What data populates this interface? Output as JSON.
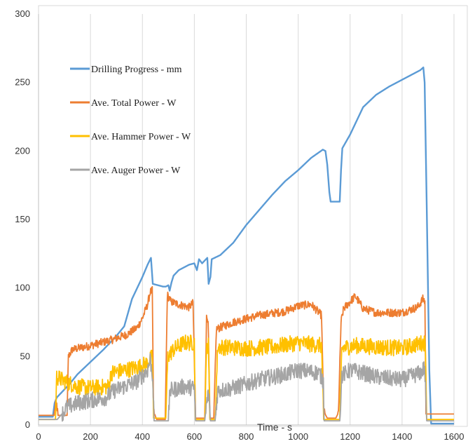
{
  "chart_data": {
    "type": "line",
    "title": "",
    "xlabel": "Time - s",
    "ylabel": "",
    "xlim": [
      0,
      1600
    ],
    "ylim": [
      0,
      300
    ],
    "x_ticks": [
      "0",
      "200",
      "400",
      "600",
      "800",
      "1000",
      "1200",
      "1400",
      "1600"
    ],
    "y_ticks": [
      "0",
      "50",
      "100",
      "150",
      "200",
      "250",
      "300"
    ],
    "grid": "vertical",
    "legend": "top-left inside plot",
    "series": [
      {
        "name": "Drilling Progress - mm",
        "color": "#5B9BD5",
        "noise": 0,
        "points": [
          [
            0,
            6
          ],
          [
            55,
            6
          ],
          [
            62,
            16
          ],
          [
            70,
            20
          ],
          [
            80,
            22
          ],
          [
            100,
            26
          ],
          [
            120,
            30
          ],
          [
            150,
            37
          ],
          [
            200,
            46
          ],
          [
            250,
            55
          ],
          [
            300,
            65
          ],
          [
            330,
            72
          ],
          [
            360,
            92
          ],
          [
            380,
            100
          ],
          [
            400,
            108
          ],
          [
            420,
            117
          ],
          [
            433,
            122
          ],
          [
            440,
            103
          ],
          [
            460,
            102
          ],
          [
            480,
            101
          ],
          [
            490,
            101
          ],
          [
            500,
            102
          ],
          [
            505,
            98
          ],
          [
            512,
            104
          ],
          [
            520,
            109
          ],
          [
            540,
            113
          ],
          [
            560,
            115
          ],
          [
            580,
            117
          ],
          [
            600,
            118
          ],
          [
            610,
            113
          ],
          [
            618,
            121
          ],
          [
            630,
            118
          ],
          [
            650,
            122
          ],
          [
            655,
            103
          ],
          [
            662,
            108
          ],
          [
            667,
            121
          ],
          [
            700,
            124
          ],
          [
            750,
            133
          ],
          [
            800,
            146
          ],
          [
            850,
            157
          ],
          [
            900,
            168
          ],
          [
            950,
            178
          ],
          [
            1000,
            186
          ],
          [
            1050,
            195
          ],
          [
            1080,
            199
          ],
          [
            1095,
            201
          ],
          [
            1105,
            200
          ],
          [
            1112,
            190
          ],
          [
            1120,
            170
          ],
          [
            1125,
            163
          ],
          [
            1160,
            163
          ],
          [
            1165,
            186
          ],
          [
            1170,
            202
          ],
          [
            1200,
            212
          ],
          [
            1250,
            232
          ],
          [
            1300,
            241
          ],
          [
            1350,
            247
          ],
          [
            1400,
            252
          ],
          [
            1450,
            257
          ],
          [
            1470,
            259
          ],
          [
            1482,
            261
          ],
          [
            1487,
            250
          ],
          [
            1495,
            160
          ],
          [
            1505,
            40
          ],
          [
            1512,
            1
          ],
          [
            1600,
            1
          ]
        ]
      },
      {
        "name": "Ave. Total Power - W",
        "color": "#ED7D31",
        "noise": 3,
        "points": [
          [
            0,
            7
          ],
          [
            60,
            7
          ],
          [
            65,
            15
          ],
          [
            70,
            15
          ],
          [
            75,
            7
          ],
          [
            110,
            7
          ],
          [
            115,
            50
          ],
          [
            130,
            55
          ],
          [
            200,
            58
          ],
          [
            280,
            62
          ],
          [
            340,
            66
          ],
          [
            380,
            71
          ],
          [
            400,
            78
          ],
          [
            420,
            88
          ],
          [
            430,
            97
          ],
          [
            438,
            98
          ],
          [
            443,
            10
          ],
          [
            455,
            4
          ],
          [
            488,
            4
          ],
          [
            496,
            95
          ],
          [
            510,
            90
          ],
          [
            540,
            88
          ],
          [
            580,
            86
          ],
          [
            595,
            89
          ],
          [
            605,
            5
          ],
          [
            640,
            5
          ],
          [
            647,
            78
          ],
          [
            653,
            78
          ],
          [
            660,
            5
          ],
          [
            675,
            5
          ],
          [
            685,
            70
          ],
          [
            750,
            75
          ],
          [
            850,
            80
          ],
          [
            950,
            83
          ],
          [
            1000,
            87
          ],
          [
            1050,
            88
          ],
          [
            1090,
            80
          ],
          [
            1098,
            10
          ],
          [
            1112,
            5
          ],
          [
            1145,
            5
          ],
          [
            1155,
            9
          ],
          [
            1165,
            75
          ],
          [
            1175,
            85
          ],
          [
            1200,
            90
          ],
          [
            1220,
            94
          ],
          [
            1250,
            85
          ],
          [
            1300,
            82
          ],
          [
            1400,
            82
          ],
          [
            1460,
            86
          ],
          [
            1480,
            92
          ],
          [
            1488,
            90
          ],
          [
            1492,
            8
          ],
          [
            1600,
            8
          ]
        ]
      },
      {
        "name": "Ave. Hammer Power - W",
        "color": "#FFC000",
        "noise": 6,
        "points": [
          [
            0,
            4
          ],
          [
            65,
            4
          ],
          [
            70,
            35
          ],
          [
            100,
            32
          ],
          [
            150,
            28
          ],
          [
            200,
            27
          ],
          [
            270,
            28
          ],
          [
            280,
            38
          ],
          [
            330,
            40
          ],
          [
            380,
            42
          ],
          [
            420,
            45
          ],
          [
            438,
            50
          ],
          [
            443,
            5
          ],
          [
            490,
            5
          ],
          [
            498,
            50
          ],
          [
            520,
            55
          ],
          [
            560,
            60
          ],
          [
            600,
            60
          ],
          [
            604,
            4
          ],
          [
            640,
            4
          ],
          [
            648,
            58
          ],
          [
            654,
            58
          ],
          [
            660,
            4
          ],
          [
            680,
            4
          ],
          [
            690,
            57
          ],
          [
            800,
            56
          ],
          [
            900,
            57
          ],
          [
            1000,
            60
          ],
          [
            1090,
            58
          ],
          [
            1098,
            4
          ],
          [
            1160,
            4
          ],
          [
            1168,
            56
          ],
          [
            1220,
            58
          ],
          [
            1300,
            57
          ],
          [
            1400,
            56
          ],
          [
            1480,
            60
          ],
          [
            1490,
            60
          ],
          [
            1495,
            4
          ],
          [
            1600,
            4
          ]
        ]
      },
      {
        "name": "Ave. Auger Power - W",
        "color": "#A5A5A5",
        "noise": 6,
        "points": [
          [
            0,
            4
          ],
          [
            65,
            4
          ],
          [
            72,
            4
          ],
          [
            90,
            8
          ],
          [
            110,
            13
          ],
          [
            150,
            16
          ],
          [
            200,
            18
          ],
          [
            260,
            20
          ],
          [
            290,
            25
          ],
          [
            330,
            28
          ],
          [
            380,
            32
          ],
          [
            420,
            40
          ],
          [
            430,
            48
          ],
          [
            440,
            35
          ],
          [
            445,
            3
          ],
          [
            500,
            3
          ],
          [
            506,
            25
          ],
          [
            560,
            28
          ],
          [
            600,
            27
          ],
          [
            605,
            3
          ],
          [
            640,
            3
          ],
          [
            650,
            20
          ],
          [
            656,
            22
          ],
          [
            662,
            3
          ],
          [
            680,
            3
          ],
          [
            690,
            25
          ],
          [
            750,
            27
          ],
          [
            850,
            33
          ],
          [
            950,
            37
          ],
          [
            1000,
            40
          ],
          [
            1080,
            38
          ],
          [
            1097,
            32
          ],
          [
            1100,
            3
          ],
          [
            1160,
            3
          ],
          [
            1168,
            36
          ],
          [
            1200,
            40
          ],
          [
            1250,
            38
          ],
          [
            1300,
            35
          ],
          [
            1400,
            33
          ],
          [
            1470,
            38
          ],
          [
            1487,
            42
          ],
          [
            1495,
            3
          ],
          [
            1600,
            3
          ]
        ]
      }
    ]
  }
}
